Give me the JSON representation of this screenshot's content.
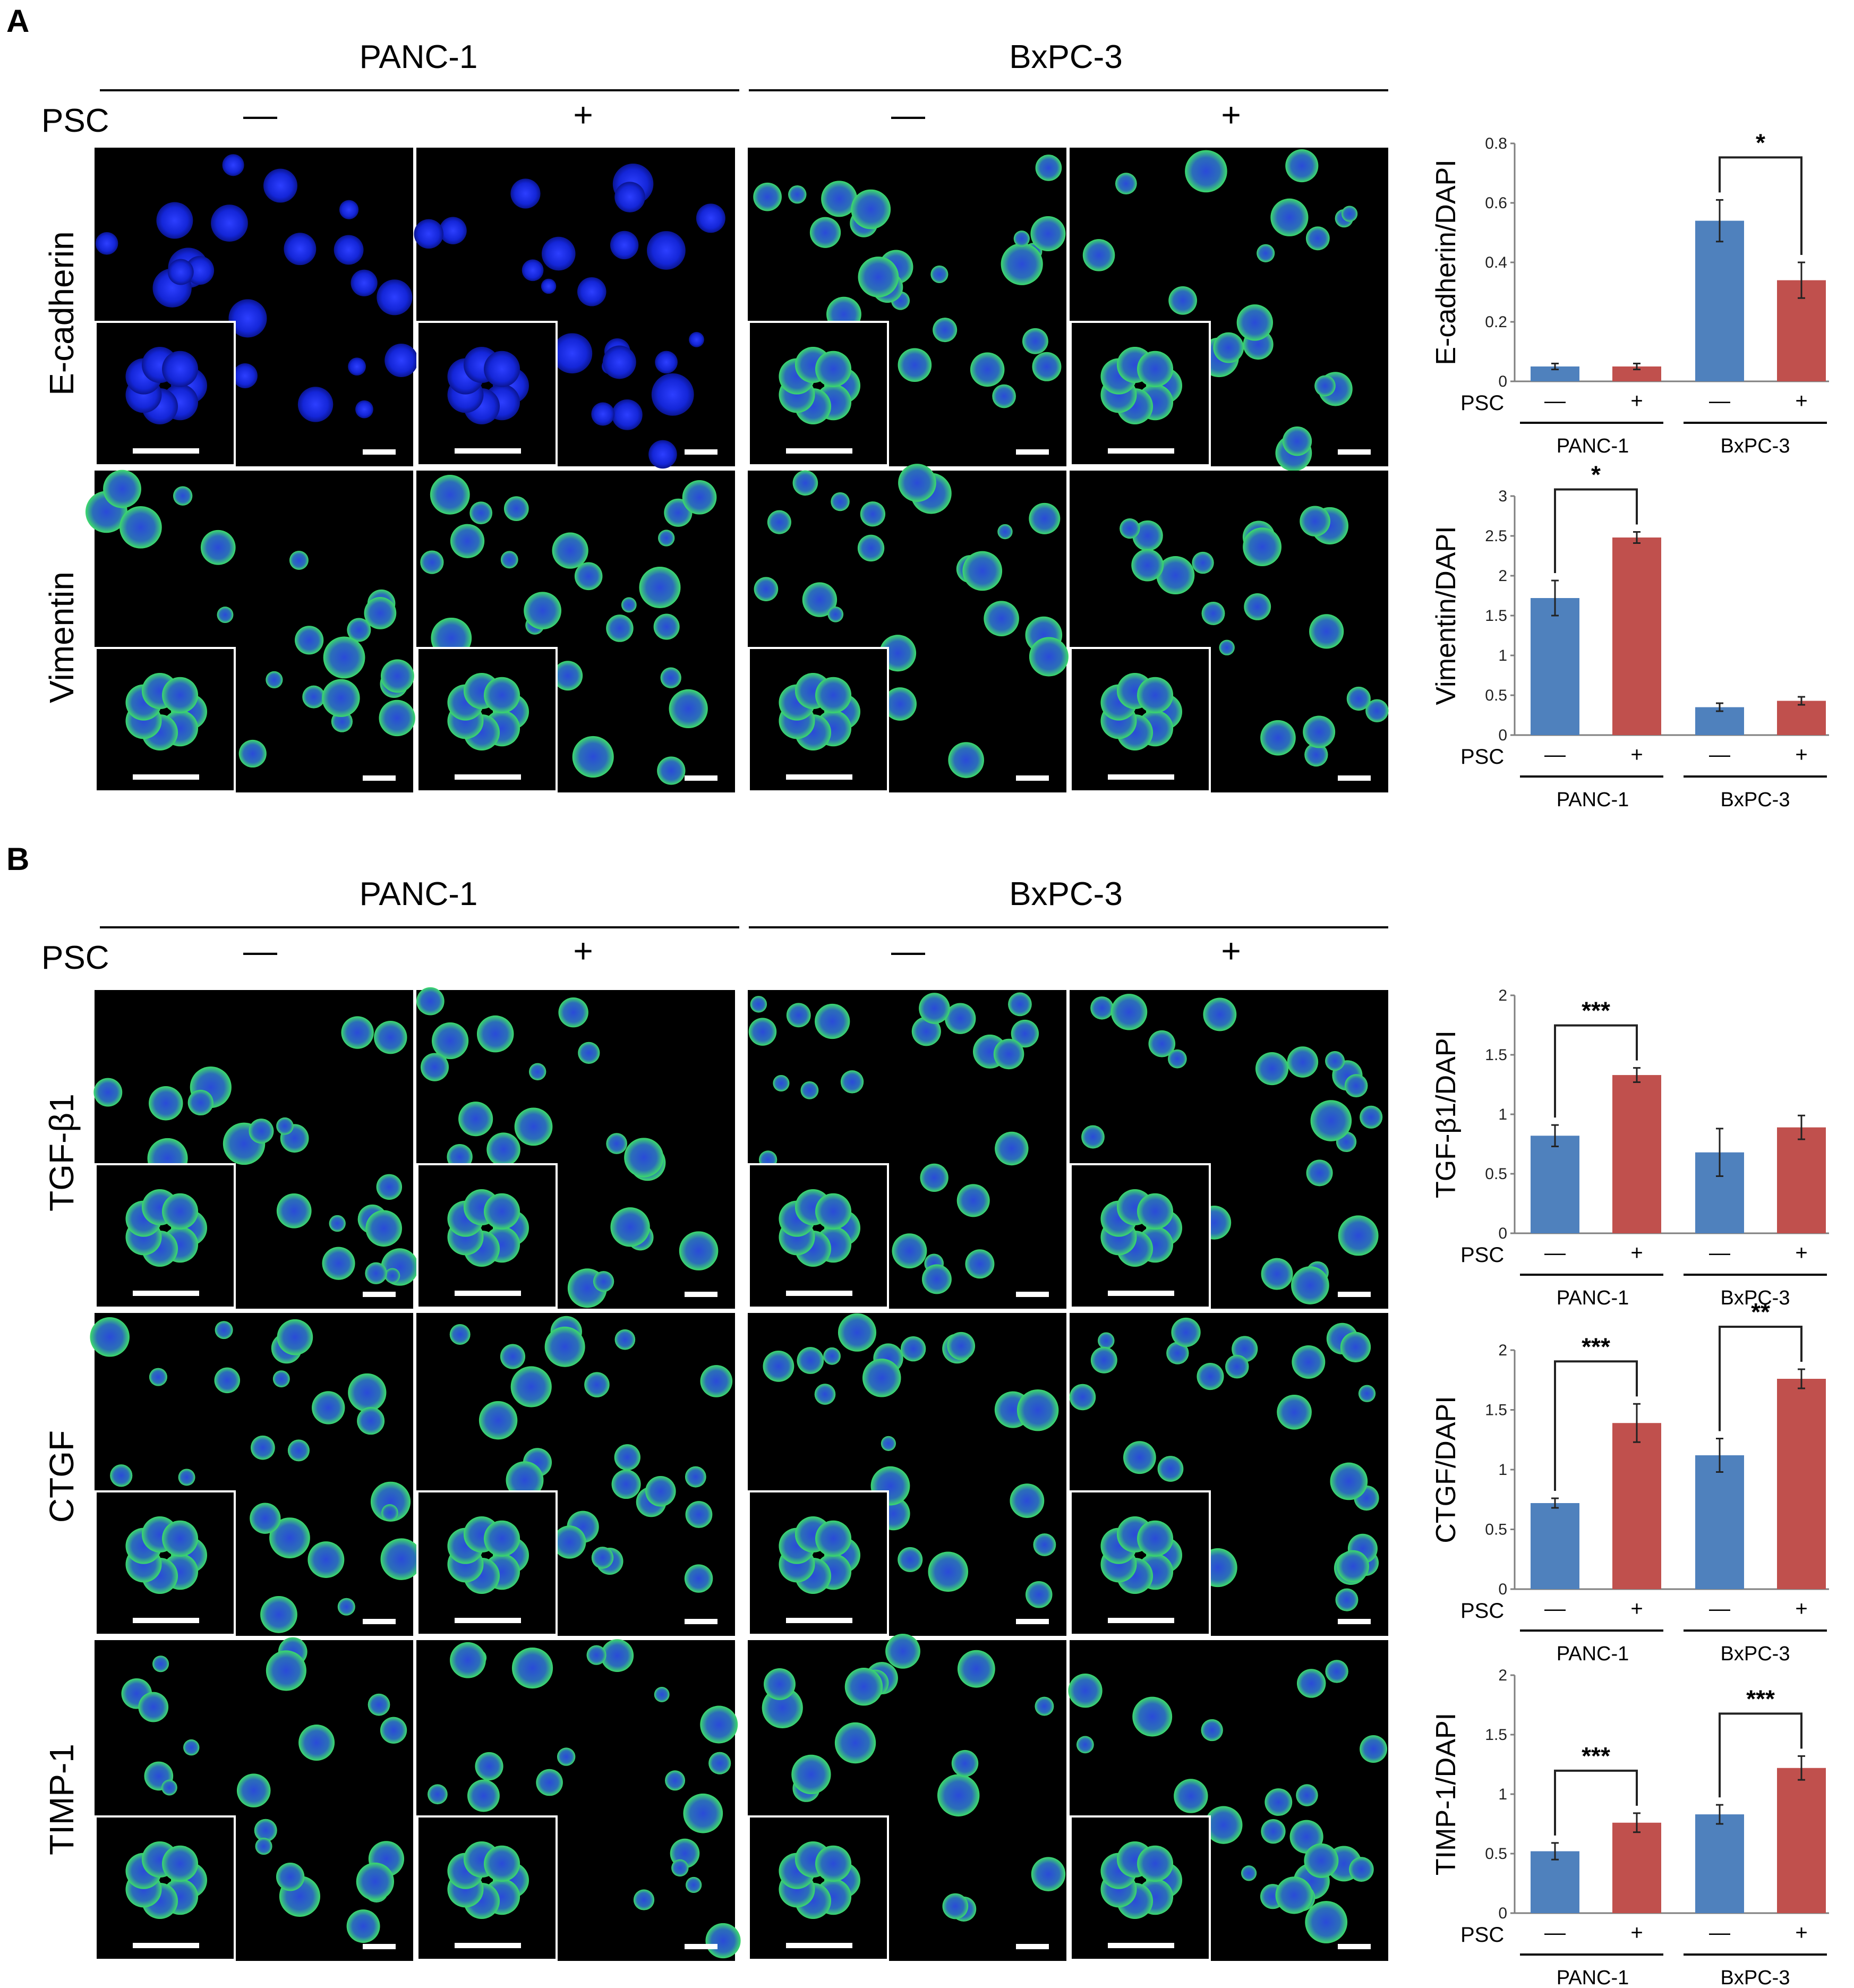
{
  "panels": {
    "A": {
      "letter": "A",
      "groups": [
        "PANC-1",
        "BxPC-3"
      ],
      "psc_label": "PSC",
      "psc_states": [
        "—",
        "+",
        "—",
        "+"
      ],
      "rows": [
        "E-cadherin",
        "Vimentin"
      ]
    },
    "B": {
      "letter": "B",
      "groups": [
        "PANC-1",
        "BxPC-3"
      ],
      "psc_label": "PSC",
      "psc_states": [
        "—",
        "+",
        "—",
        "+"
      ],
      "rows": [
        "TGF-β1",
        "CTGF",
        "TIMP-1"
      ]
    }
  },
  "colors": {
    "blue_bar": "#4f81bd",
    "red_bar": "#c0504d",
    "dapi_blue": "#1a33ff",
    "marker_green": "#33dd66"
  },
  "chart_data": [
    {
      "type": "bar",
      "ylabel": "E-cadherin/DAPI",
      "ylim": [
        0,
        0.8
      ],
      "yticks": [
        "0",
        "0.2",
        "0.4",
        "0.6",
        "0.8"
      ],
      "psc_label": "PSC",
      "psc_states": [
        "—",
        "+",
        "—",
        "+"
      ],
      "groups": [
        "PANC-1",
        "BxPC-3"
      ],
      "values": [
        0.05,
        0.05,
        0.54,
        0.34
      ],
      "errors": [
        0.01,
        0.01,
        0.07,
        0.06
      ],
      "significance": [
        {
          "from": 2,
          "to": 3,
          "label": "*"
        }
      ]
    },
    {
      "type": "bar",
      "ylabel": "Vimentin/DAPI",
      "ylim": [
        0,
        3
      ],
      "yticks": [
        "0",
        "0.5",
        "1",
        "1.5",
        "2",
        "2.5",
        "3"
      ],
      "psc_label": "PSC",
      "psc_states": [
        "—",
        "+",
        "—",
        "+"
      ],
      "groups": [
        "PANC-1",
        "BxPC-3"
      ],
      "values": [
        1.72,
        2.48,
        0.35,
        0.43
      ],
      "errors": [
        0.22,
        0.07,
        0.05,
        0.05
      ],
      "significance": [
        {
          "from": 0,
          "to": 1,
          "label": "*"
        }
      ]
    },
    {
      "type": "bar",
      "ylabel": "TGF-β1/DAPI",
      "ylim": [
        0,
        2
      ],
      "yticks": [
        "0",
        "0.5",
        "1",
        "1.5",
        "2"
      ],
      "psc_label": "PSC",
      "psc_states": [
        "—",
        "+",
        "—",
        "+"
      ],
      "groups": [
        "PANC-1",
        "BxPC-3"
      ],
      "values": [
        0.82,
        1.33,
        0.68,
        0.89
      ],
      "errors": [
        0.09,
        0.06,
        0.2,
        0.1
      ],
      "significance": [
        {
          "from": 0,
          "to": 1,
          "label": "***"
        }
      ]
    },
    {
      "type": "bar",
      "ylabel": "CTGF/DAPI",
      "ylim": [
        0,
        2
      ],
      "yticks": [
        "0",
        "0.5",
        "1",
        "1.5",
        "2"
      ],
      "psc_label": "PSC",
      "psc_states": [
        "—",
        "+",
        "—",
        "+"
      ],
      "groups": [
        "PANC-1",
        "BxPC-3"
      ],
      "values": [
        0.72,
        1.39,
        1.12,
        1.76
      ],
      "errors": [
        0.04,
        0.16,
        0.14,
        0.08
      ],
      "significance": [
        {
          "from": 0,
          "to": 1,
          "label": "***"
        },
        {
          "from": 2,
          "to": 3,
          "label": "**"
        }
      ]
    },
    {
      "type": "bar",
      "ylabel": "TIMP-1/DAPI",
      "ylim": [
        0,
        2
      ],
      "yticks": [
        "0",
        "0.5",
        "1",
        "1.5",
        "2"
      ],
      "psc_label": "PSC",
      "psc_states": [
        "—",
        "+",
        "—",
        "+"
      ],
      "groups": [
        "PANC-1",
        "BxPC-3"
      ],
      "values": [
        0.52,
        0.76,
        0.83,
        1.22
      ],
      "errors": [
        0.07,
        0.08,
        0.08,
        0.1
      ],
      "significance": [
        {
          "from": 0,
          "to": 1,
          "label": "***"
        },
        {
          "from": 2,
          "to": 3,
          "label": "***"
        }
      ]
    }
  ]
}
